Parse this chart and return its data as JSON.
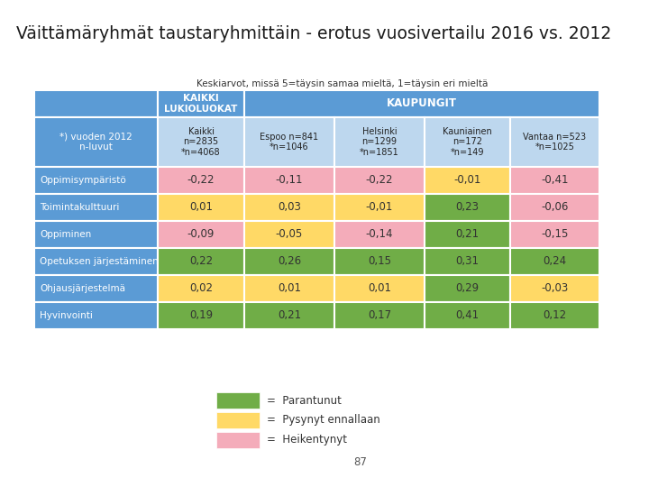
{
  "title": "Väittämäryhmät taustaryhmittäin - erotus vuosivertailu 2016 vs. 2012",
  "subtitle": "Keskiarvot, missä 5=täysin samaa mieltä, 1=täysin eri mieltä",
  "col_headers_row2": [
    "Kaikki\nn=2835\n*n=4068",
    "Espoo n=841\n*n=1046",
    "Helsinki\nn=1299\n*n=1851",
    "Kauniainen\nn=172\n*n=149",
    "Vantaa n=523\n*n=1025"
  ],
  "row_labels": [
    "*) vuoden 2012\nn-luvut",
    "Oppimisympäristö",
    "Toimintakulttuuri",
    "Oppiminen",
    "Opetuksen järjestäminen",
    "Ohjausjärjestelmä",
    "Hyvinvointi"
  ],
  "data": [
    [
      null,
      null,
      null,
      null,
      null
    ],
    [
      -0.22,
      -0.11,
      -0.22,
      -0.01,
      -0.41
    ],
    [
      0.01,
      0.03,
      -0.01,
      0.23,
      -0.06
    ],
    [
      -0.09,
      -0.05,
      -0.14,
      0.21,
      -0.15
    ],
    [
      0.22,
      0.26,
      0.15,
      0.31,
      0.24
    ],
    [
      0.02,
      0.01,
      0.01,
      0.29,
      -0.03
    ],
    [
      0.19,
      0.21,
      0.17,
      0.41,
      0.12
    ]
  ],
  "data_text": [
    [
      "Kaikki\nn=2835\n*n=4068",
      "Espoo n=841\n*n=1046",
      "Helsinki\nn=1299\n*n=1851",
      "Kauniainen\nn=172\n*n=149",
      "Vantaa n=523\n*n=1025"
    ],
    [
      "-0,22",
      "-0,11",
      "-0,22",
      "-0,01",
      "-0,41"
    ],
    [
      "0,01",
      "0,03",
      "-0,01",
      "0,23",
      "-0,06"
    ],
    [
      "-0,09",
      "-0,05",
      "-0,14",
      "0,21",
      "-0,15"
    ],
    [
      "0,22",
      "0,26",
      "0,15",
      "0,31",
      "0,24"
    ],
    [
      "0,02",
      "0,01",
      "0,01",
      "0,29",
      "-0,03"
    ],
    [
      "0,19",
      "0,21",
      "0,17",
      "0,41",
      "0,12"
    ]
  ],
  "header_bg": "#5B9BD5",
  "header_text": "#FFFFFF",
  "row_label_bg": "#5B9BD5",
  "row_label_text": "#FFFFFF",
  "subheader_bg": "#BDD7EE",
  "color_green": "#70AD47",
  "color_yellow": "#FFD966",
  "color_pink": "#F4ACBA",
  "legend_items": [
    "Parantunut",
    "Pysynyt ennallaan",
    "Heikentynyt"
  ],
  "legend_colors": [
    "#70AD47",
    "#FFD966",
    "#F4ACBA"
  ],
  "page_number": "87",
  "background": "#FFFFFF"
}
